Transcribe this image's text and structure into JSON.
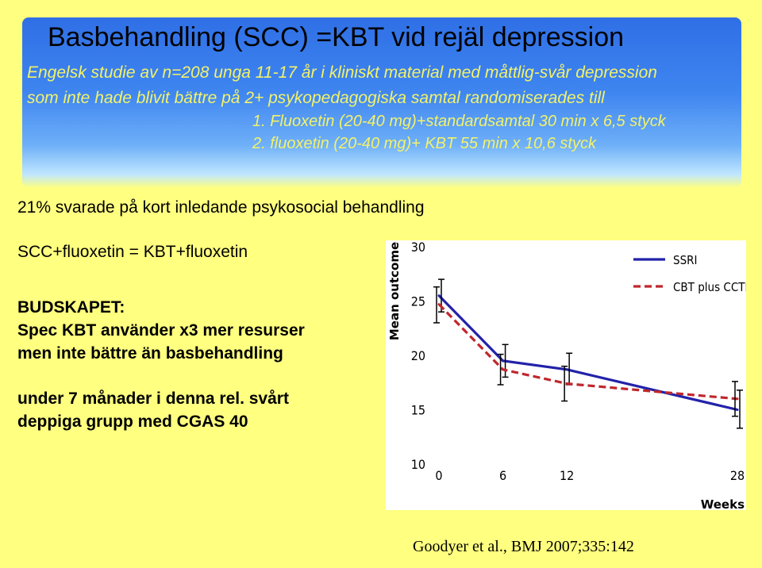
{
  "slide": {
    "title": "Basbehandling (SCC) =KBT vid rejäl depression",
    "subtitle_line1": "Engelsk studie av n=208 unga 11-17 år i kliniskt material med måttlig-svår depression",
    "subtitle_line2": "som inte hade blivit bättre på 2+ psykopedagogiska samtal randomiserades till",
    "item1": "1. Fluoxetin (20-40 mg)+standardsamtal 30 min x 6,5 styck",
    "item2": "2. fluoxetin (20-40 mg)+ KBT 55 min x 10,6 styck",
    "text1": "21% svarade på kort inledande psykosocial behandling",
    "text2": "SCC+fluoxetin = KBT+fluoxetin",
    "budget_heading": "BUDSKAPET:",
    "budget_line1": "Spec KBT  använder x3 mer resurser",
    "budget_line2": "men inte bättre än basbehandling",
    "note_line1": "under 7 månader i denna rel. svårt",
    "note_line2": "deppiga grupp med CGAS 40",
    "citation": "Goodyer et al., BMJ 2007;335:142"
  },
  "chart_data": {
    "type": "line",
    "ylabel": "Mean outcome",
    "xlabel": "Weeks",
    "x": [
      0,
      6,
      12,
      28
    ],
    "xticks": [
      "0",
      "6",
      "12",
      "28"
    ],
    "yticks": [
      "10",
      "15",
      "20",
      "25",
      "30"
    ],
    "ylim": [
      10,
      30
    ],
    "xlim": [
      0,
      28
    ],
    "legend_position": "top-right",
    "grid": false,
    "series": [
      {
        "name": "SSRI",
        "style": "solid",
        "color": "#2222aa",
        "values": [
          25.5,
          19.5,
          18.7,
          15.0
        ],
        "err_low": [
          24.0,
          18.0,
          17.3,
          13.3
        ],
        "err_high": [
          27.0,
          21.0,
          20.2,
          16.8
        ]
      },
      {
        "name": "CBT plus CCTI",
        "style": "dashed",
        "color": "#c0272d",
        "values": [
          24.7,
          18.7,
          17.4,
          16.0
        ],
        "err_low": [
          23.0,
          17.3,
          15.8,
          14.4
        ],
        "err_high": [
          26.3,
          20.1,
          19.0,
          17.6
        ]
      }
    ]
  }
}
